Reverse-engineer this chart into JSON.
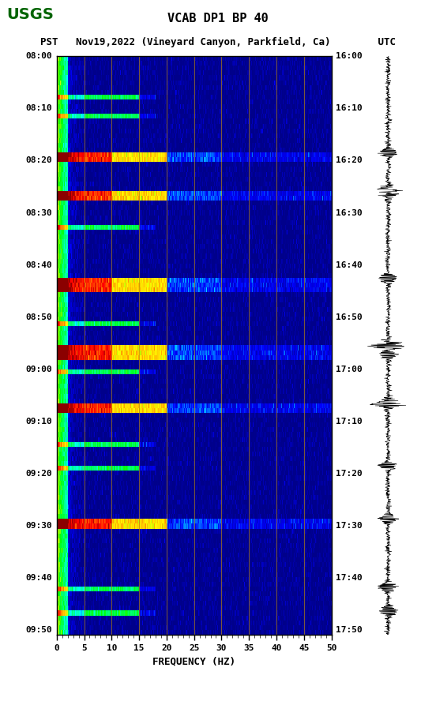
{
  "title_line1": "VCAB DP1 BP 40",
  "title_line2": "PST   Nov19,2022 (Vineyard Canyon, Parkfield, Ca)        UTC",
  "xlabel": "FREQUENCY (HZ)",
  "freq_min": 0,
  "freq_max": 50,
  "freq_ticks": [
    0,
    5,
    10,
    15,
    20,
    25,
    30,
    35,
    40,
    45,
    50
  ],
  "left_time_labels": [
    "08:00",
    "08:10",
    "08:20",
    "08:30",
    "08:40",
    "08:50",
    "09:00",
    "09:10",
    "09:20",
    "09:30",
    "09:40",
    "09:50"
  ],
  "right_time_labels": [
    "16:00",
    "16:10",
    "16:20",
    "16:30",
    "16:40",
    "16:50",
    "17:00",
    "17:10",
    "17:20",
    "17:30",
    "17:40",
    "17:50"
  ],
  "n_time_steps": 120,
  "n_freq_steps": 500,
  "background_color": "#ffffff",
  "spectrogram_bg_color": "#00008B",
  "vertical_line_color": "#8B8B00",
  "vertical_line_positions": [
    5,
    10,
    15,
    20,
    25,
    30,
    35,
    40,
    45
  ],
  "usgs_color": "#006400"
}
